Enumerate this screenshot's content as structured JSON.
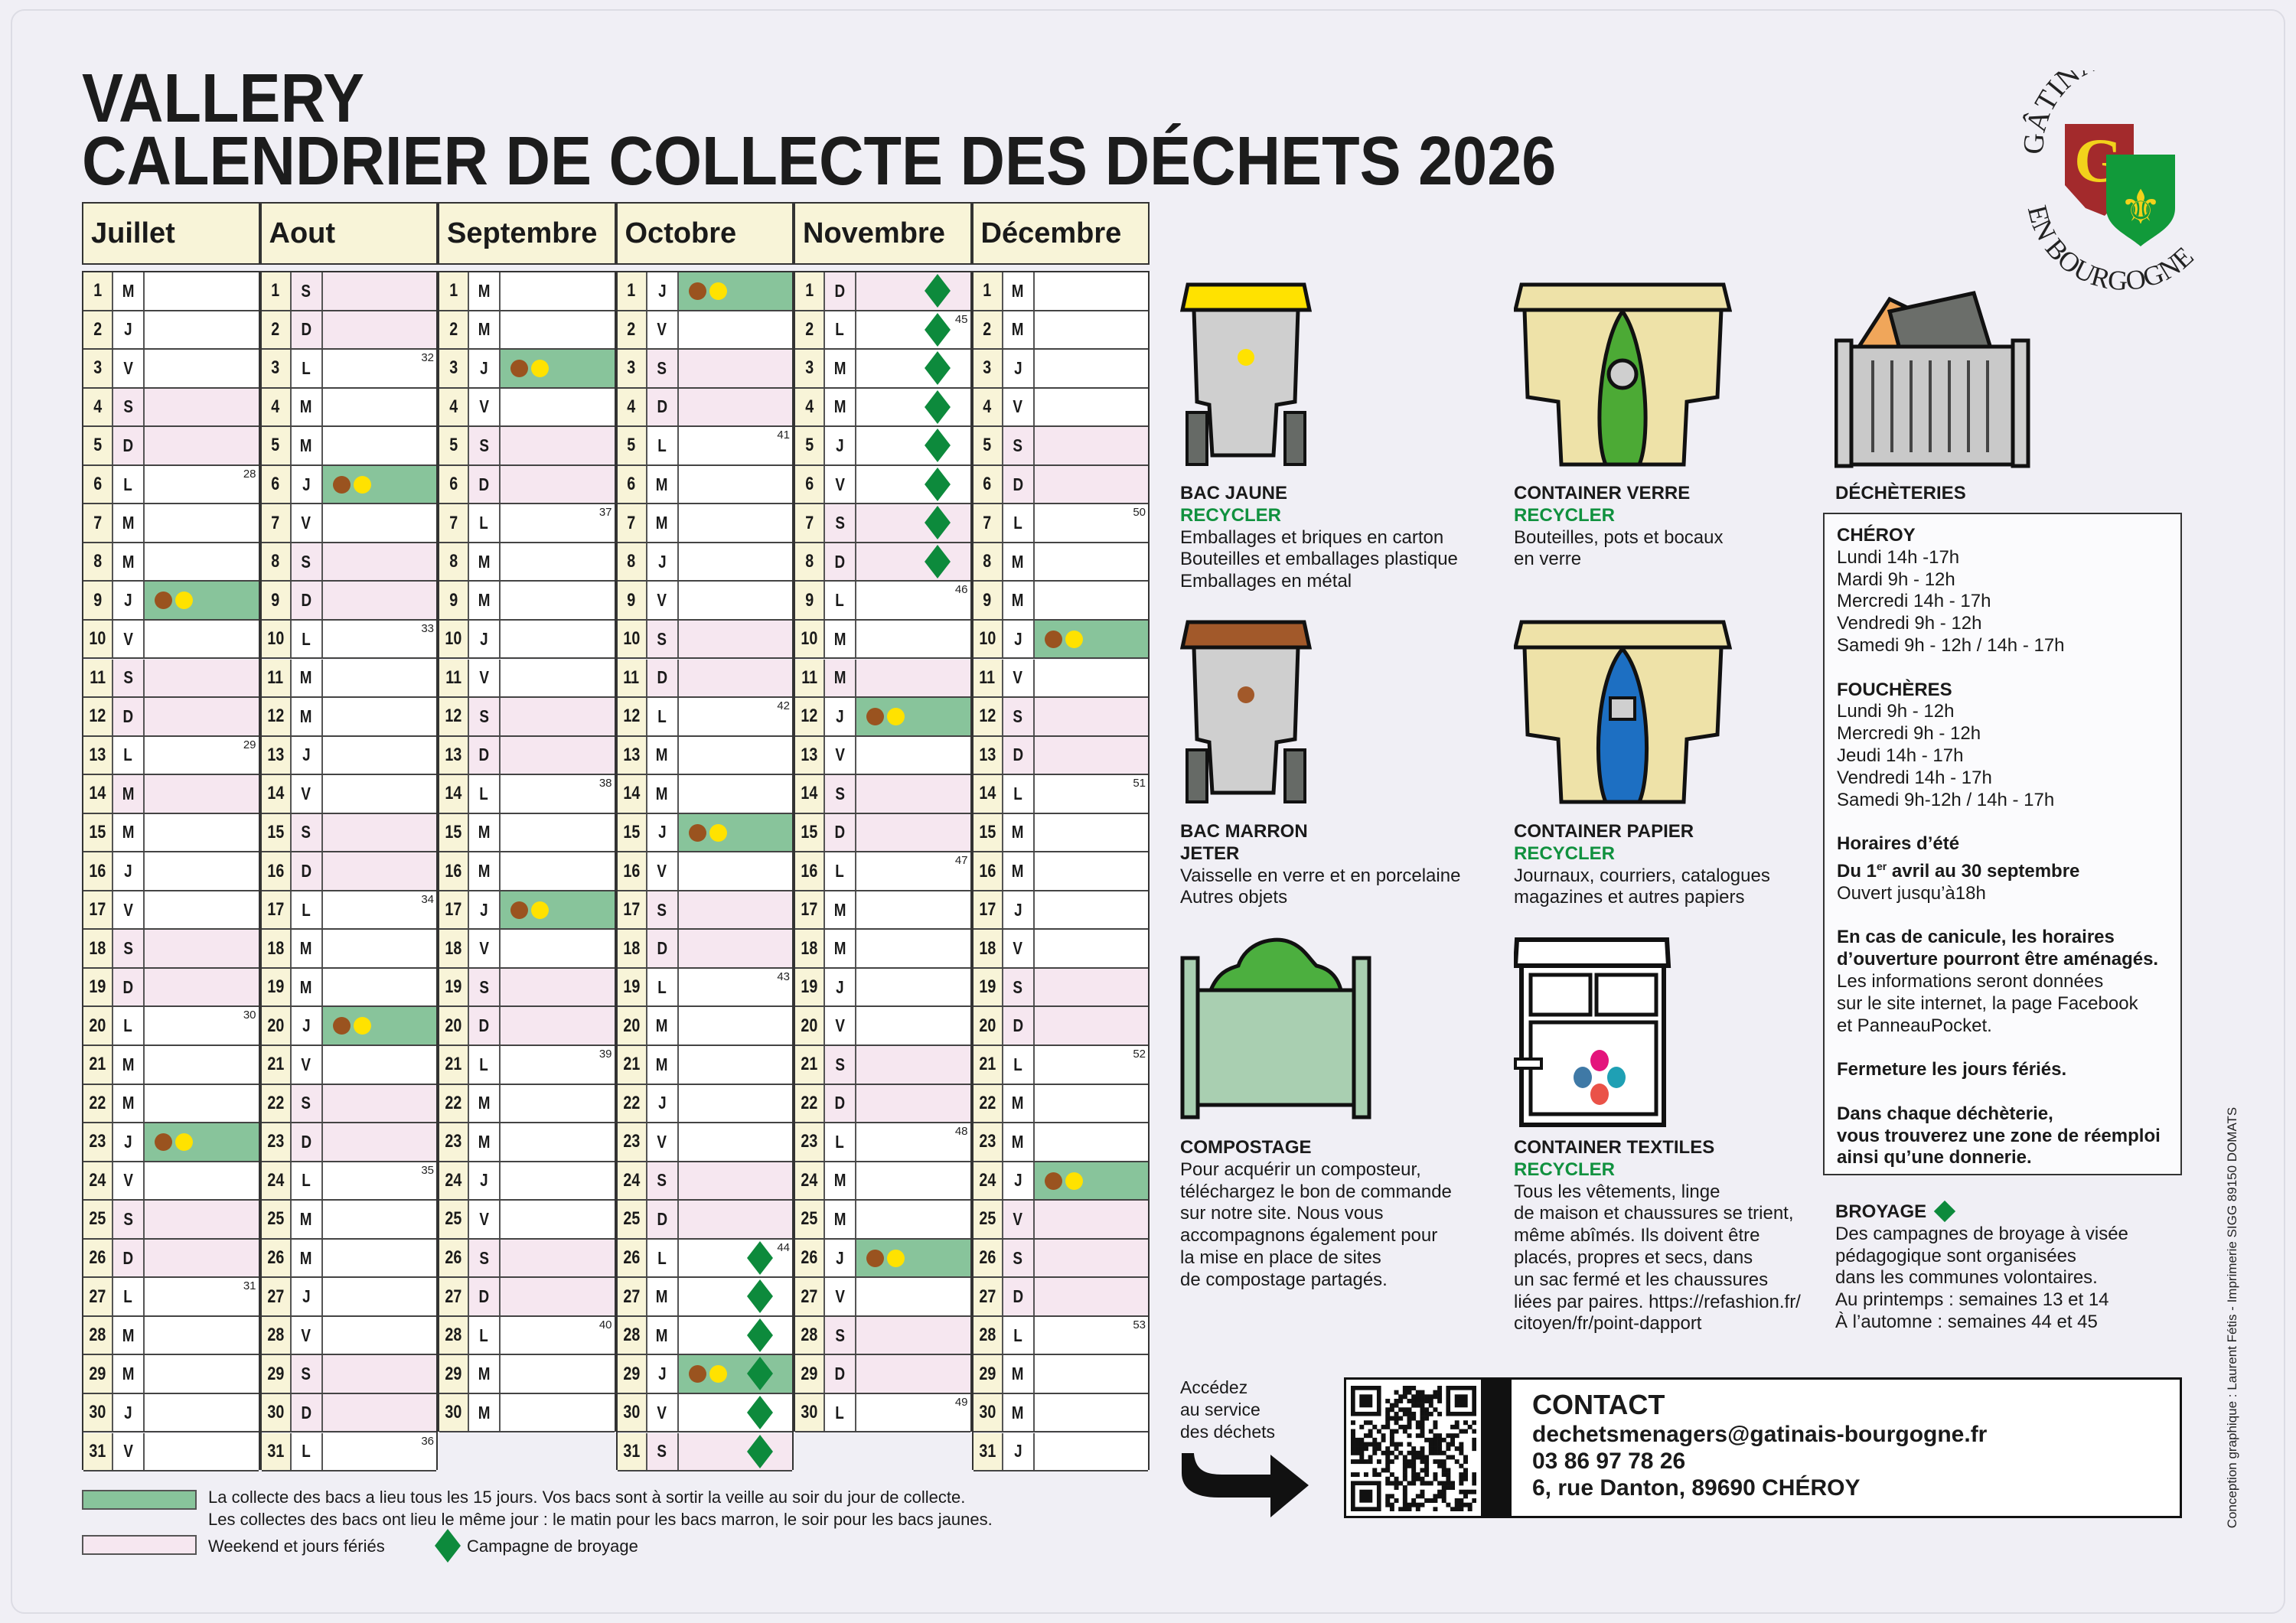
{
  "header": {
    "town": "VALLERY",
    "title": "CALENDRIER DE COLLECTE DES DÉCHETS 2026"
  },
  "logo": {
    "top_text": "GÂTINAIS",
    "bottom_text": "EN BOURGOGNE",
    "letter": "G"
  },
  "colors": {
    "collection_bg": "#88c49b",
    "weekend_bg": "#f6e7f0",
    "brown_bin": "#9a531f",
    "yellow_bin": "#ffe200",
    "broyage": "#0d8a3c",
    "recycler": "#11913f"
  },
  "calendar": {
    "weekday_letters": [
      "L",
      "M",
      "M",
      "J",
      "V",
      "S",
      "D"
    ],
    "months": [
      {
        "name": "Juillet",
        "first_weekday_index": 2,
        "days": 31,
        "weeks": [
          [
            6,
            28
          ],
          [
            13,
            29
          ],
          [
            20,
            30
          ],
          [
            27,
            31
          ]
        ],
        "collection": [
          9,
          23
        ],
        "broyage": [],
        "holidays": [
          14
        ]
      },
      {
        "name": "Aout",
        "first_weekday_index": 5,
        "days": 31,
        "weeks": [
          [
            3,
            32
          ],
          [
            10,
            33
          ],
          [
            17,
            34
          ],
          [
            24,
            35
          ],
          [
            31,
            36
          ]
        ],
        "collection": [
          6,
          20
        ],
        "broyage": [],
        "holidays": [
          15
        ]
      },
      {
        "name": "Septembre",
        "first_weekday_index": 1,
        "days": 30,
        "weeks": [
          [
            7,
            37
          ],
          [
            14,
            38
          ],
          [
            21,
            39
          ],
          [
            28,
            40
          ]
        ],
        "collection": [
          3,
          17
        ],
        "broyage": [],
        "holidays": []
      },
      {
        "name": "Octobre",
        "first_weekday_index": 3,
        "days": 31,
        "weeks": [
          [
            5,
            41
          ],
          [
            12,
            42
          ],
          [
            19,
            43
          ],
          [
            26,
            44
          ]
        ],
        "collection": [
          1,
          15,
          29
        ],
        "broyage": [
          26,
          27,
          28,
          29,
          30,
          31
        ],
        "holidays": []
      },
      {
        "name": "Novembre",
        "first_weekday_index": 6,
        "days": 30,
        "weeks": [
          [
            2,
            45
          ],
          [
            9,
            46
          ],
          [
            16,
            47
          ],
          [
            23,
            48
          ],
          [
            30,
            49
          ]
        ],
        "collection": [
          12,
          26
        ],
        "broyage": [
          1,
          2,
          3,
          4,
          5,
          6,
          7,
          8
        ],
        "holidays": [
          1,
          11
        ]
      },
      {
        "name": "Décembre",
        "first_weekday_index": 1,
        "days": 31,
        "weeks": [
          [
            7,
            50
          ],
          [
            14,
            51
          ],
          [
            21,
            52
          ],
          [
            28,
            53
          ]
        ],
        "collection": [
          10,
          24
        ],
        "broyage": [],
        "holidays": [
          25
        ]
      }
    ]
  },
  "legend": {
    "collection_line1": "La collecte des bacs a lieu tous les 15 jours. Vos bacs sont à sortir la veille au soir du jour de collecte.",
    "collection_line2": "Les collectes des bacs ont lieu le même jour : le matin pour les bacs marron, le soir pour les bacs jaunes.",
    "weekend": "Weekend et jours fériés",
    "broyage": "Campagne de broyage"
  },
  "bins": {
    "bac_jaune": {
      "title": "BAC JAUNE",
      "subtitle": "RECYCLER",
      "lines": [
        "Emballages et briques en carton",
        "Bouteilles et emballages plastique",
        "Emballages en métal"
      ]
    },
    "container_verre": {
      "title": "CONTAINER VERRE",
      "subtitle": "RECYCLER",
      "lines": [
        "Bouteilles, pots et bocaux",
        "en verre"
      ]
    },
    "bac_marron": {
      "title": "BAC MARRON",
      "subtitle": "JETER",
      "lines": [
        "Vaisselle en verre et en porcelaine",
        "Autres objets"
      ]
    },
    "container_papier": {
      "title": "CONTAINER PAPIER",
      "subtitle": "RECYCLER",
      "lines": [
        "Journaux, courriers, catalogues",
        "magazines et autres papiers"
      ]
    },
    "compostage": {
      "title": "COMPOSTAGE",
      "lines": [
        "Pour acquérir un composteur,",
        "téléchargez le bon de commande",
        "sur notre site. Nous vous",
        "accompagnons également pour",
        "la mise en place de sites",
        "de compostage partagés."
      ]
    },
    "container_textiles": {
      "title": "CONTAINER TEXTILES",
      "subtitle": "RECYCLER",
      "lines": [
        "Tous les vêtements, linge",
        "de maison et chaussures se trient,",
        "même abîmés. Ils doivent être",
        "placés, propres et secs, dans",
        "un sac fermé et les chaussures",
        "liées par paires. https://refashion.fr/",
        "citoyen/fr/point-dapport"
      ]
    }
  },
  "decheteries": {
    "title": "DÉCHÈTERIES",
    "cheroy": {
      "name": "CHÉROY",
      "hours": [
        "Lundi 14h -17h",
        "Mardi 9h - 12h",
        "Mercredi 14h - 17h",
        "Vendredi 9h - 12h",
        "Samedi 9h - 12h / 14h - 17h"
      ]
    },
    "foucheres": {
      "name": "FOUCHÈRES",
      "hours": [
        "Lundi 9h - 12h",
        "Mercredi 9h - 12h",
        "Jeudi 14h - 17h",
        "Vendredi 14h - 17h",
        "Samedi 9h-12h / 14h - 17h"
      ]
    },
    "summer_title": "Horaires d’été",
    "summer_period_pre": "Du 1",
    "summer_period_sup": "er",
    "summer_period_post": " avril au 30 septembre",
    "summer_note": "Ouvert jusqu’à18h",
    "heat_bold": [
      "En cas de canicule, les horaires",
      "d’ouverture pourront être aménagés."
    ],
    "heat_lines": [
      "Les informations seront données",
      "sur le site internet, la page Facebook",
      "et PanneauPocket."
    ],
    "closing": "Fermeture les jours fériés.",
    "reuse": [
      "Dans chaque déchèterie,",
      "vous trouverez une zone de réemploi",
      "ainsi qu’une donnerie."
    ]
  },
  "broyage": {
    "title": "BROYAGE",
    "lines": [
      "Des campagnes de broyage à visée",
      "pédagogique sont organisées",
      "dans les communes volontaires.",
      "Au printemps : semaines 13 et 14",
      "À l’automne : semaines 44 et 45"
    ]
  },
  "access": {
    "lines": [
      "Accédez",
      "au service",
      "des déchets"
    ]
  },
  "contact": {
    "title": "CONTACT",
    "email": "dechetsmenagers@gatinais-bourgogne.fr",
    "phone": "03 86 97 78 26",
    "address": "6, rue Danton, 89690 CHÉROY"
  },
  "credit": "Conception graphique : Laurent Fétis - Imprimerie SIGG 89150 DOMATS"
}
